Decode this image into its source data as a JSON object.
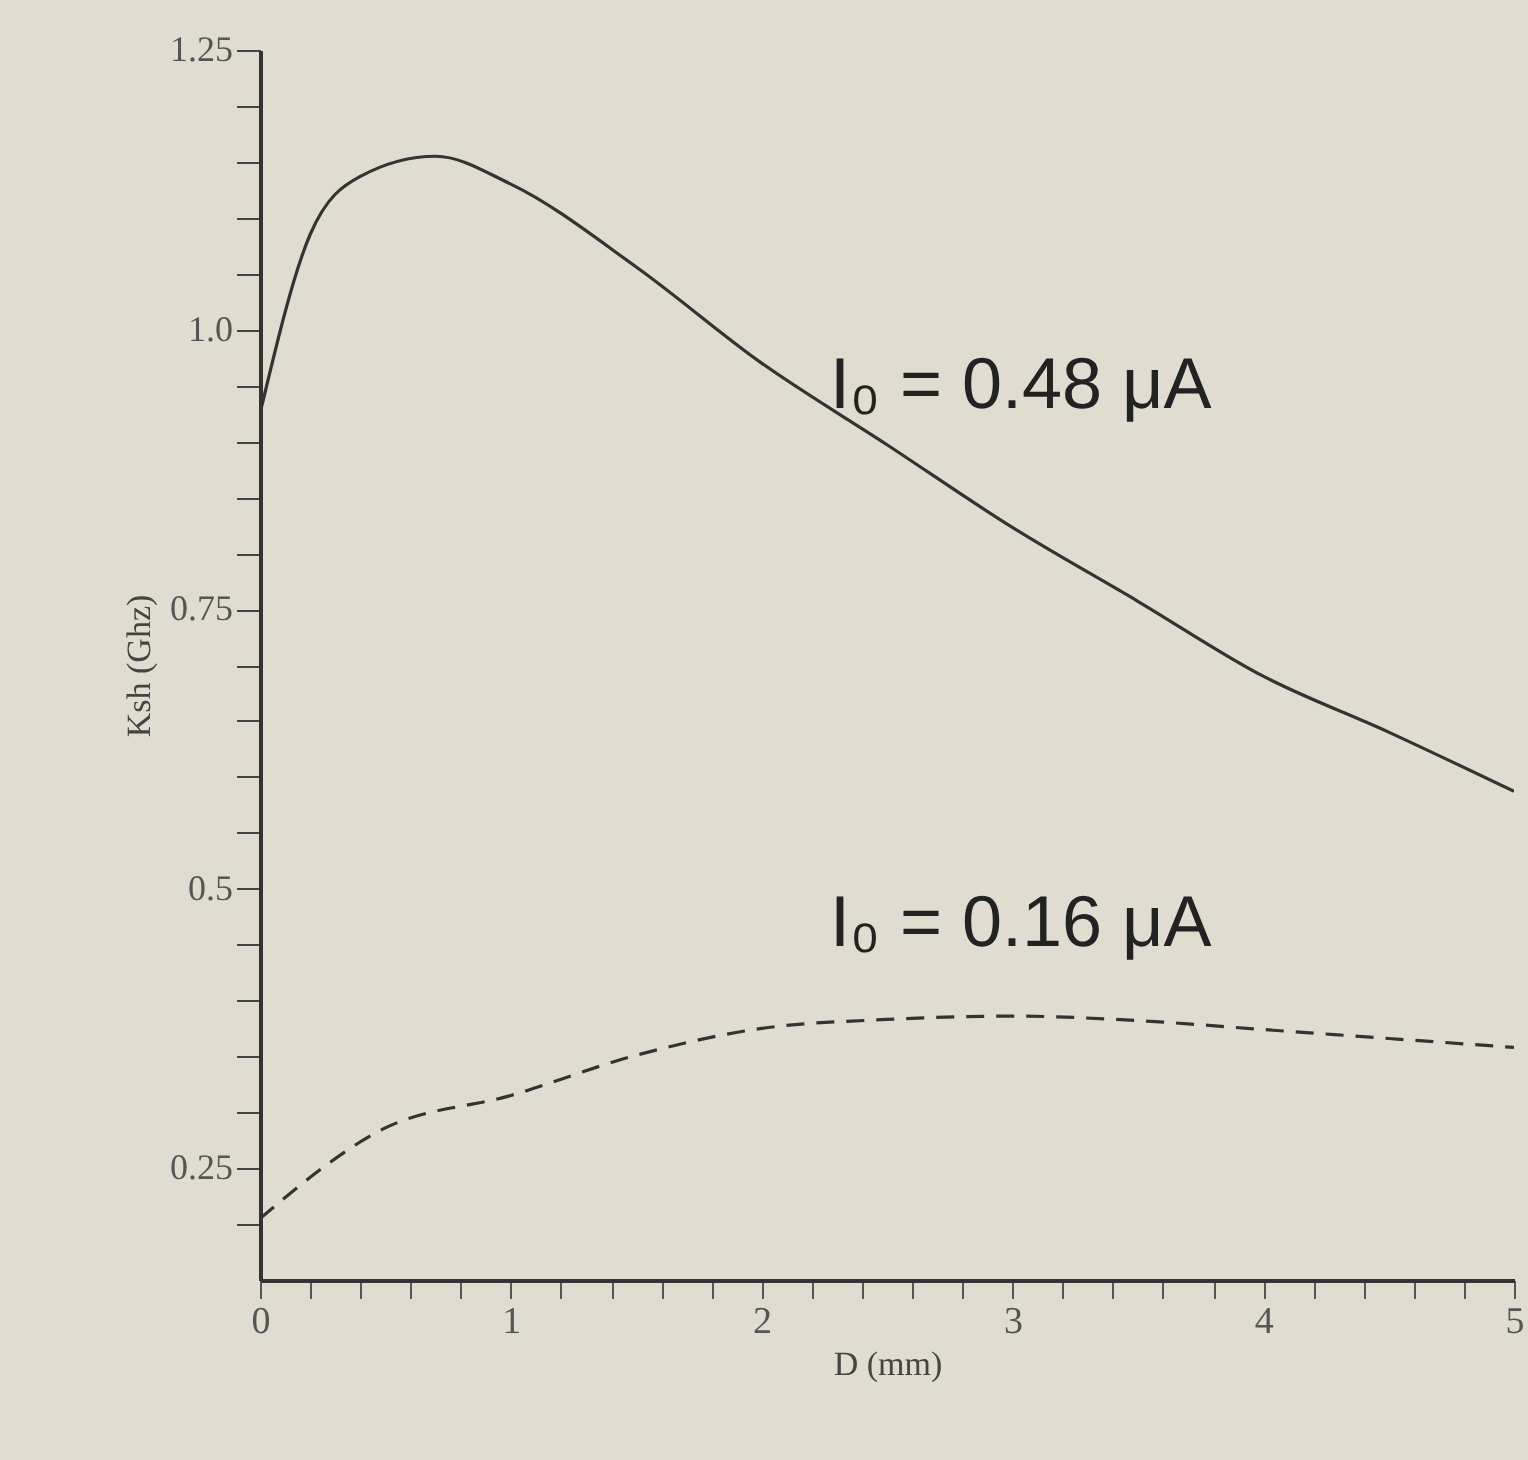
{
  "chart_data": {
    "type": "line",
    "xlabel": "D (mm)",
    "ylabel": "Ksh (Ghz)",
    "xlim": [
      0,
      5
    ],
    "ylim": [
      0.15,
      1.25
    ],
    "xticks": [
      0,
      {
        "value": 0.2,
        "label": null
      },
      {
        "value": 0.4,
        "label": null
      },
      {
        "value": 0.6,
        "label": null
      },
      {
        "value": 0.8,
        "label": null
      },
      1,
      {
        "value": 1.2,
        "label": null
      },
      {
        "value": 1.4,
        "label": null
      },
      {
        "value": 1.6,
        "label": null
      },
      {
        "value": 1.8,
        "label": null
      },
      2,
      {
        "value": 2.2,
        "label": null
      },
      {
        "value": 2.4,
        "label": null
      },
      {
        "value": 2.6,
        "label": null
      },
      {
        "value": 2.8,
        "label": null
      },
      3,
      {
        "value": 3.2,
        "label": null
      },
      {
        "value": 3.4,
        "label": null
      },
      {
        "value": 3.6,
        "label": null
      },
      {
        "value": 3.8,
        "label": null
      },
      4,
      {
        "value": 4.2,
        "label": null
      },
      {
        "value": 4.4,
        "label": null
      },
      {
        "value": 4.6,
        "label": null
      },
      {
        "value": 4.8,
        "label": null
      },
      5
    ],
    "yticks": [
      {
        "value": 0.2,
        "label": null
      },
      0.25,
      {
        "value": 0.3,
        "label": null
      },
      {
        "value": 0.35,
        "label": null
      },
      {
        "value": 0.4,
        "label": null
      },
      {
        "value": 0.45,
        "label": null
      },
      {
        "value": 0.5,
        "label": "0.5"
      },
      {
        "value": 0.55,
        "label": null
      },
      {
        "value": 0.6,
        "label": null
      },
      {
        "value": 0.65,
        "label": null
      },
      {
        "value": 0.7,
        "label": null
      },
      0.75,
      {
        "value": 0.8,
        "label": null
      },
      {
        "value": 0.85,
        "label": null
      },
      {
        "value": 0.9,
        "label": null
      },
      {
        "value": 0.95,
        "label": null
      },
      {
        "value": 1.0,
        "label": "1.0"
      },
      {
        "value": 1.05,
        "label": null
      },
      {
        "value": 1.1,
        "label": null
      },
      {
        "value": 1.15,
        "label": null
      },
      {
        "value": 1.2,
        "label": null
      },
      1.25
    ],
    "x": [
      0,
      0.2,
      0.4,
      0.7,
      1.0,
      1.5,
      2.0,
      2.5,
      3.0,
      3.5,
      4.0,
      4.5,
      5.0
    ],
    "series": [
      {
        "name": "I₀ = 0.48 μA",
        "color": "#333333",
        "line_style": "solid",
        "values": [
          0.925,
          1.085,
          1.137,
          1.155,
          1.13,
          1.056,
          0.97,
          0.897,
          0.823,
          0.757,
          0.69,
          0.64,
          0.587
        ]
      },
      {
        "name": "I₀ = 0.16 μA",
        "color": "#333333",
        "line_style": "dashed",
        "x": [
          0,
          0.5,
          1.0,
          1.5,
          2.0,
          2.5,
          3.0,
          3.5,
          4.0,
          4.5,
          5.0
        ],
        "values": [
          0.205,
          0.286,
          0.315,
          0.351,
          0.375,
          0.383,
          0.386,
          0.382,
          0.374,
          0.366,
          0.358
        ]
      }
    ]
  }
}
